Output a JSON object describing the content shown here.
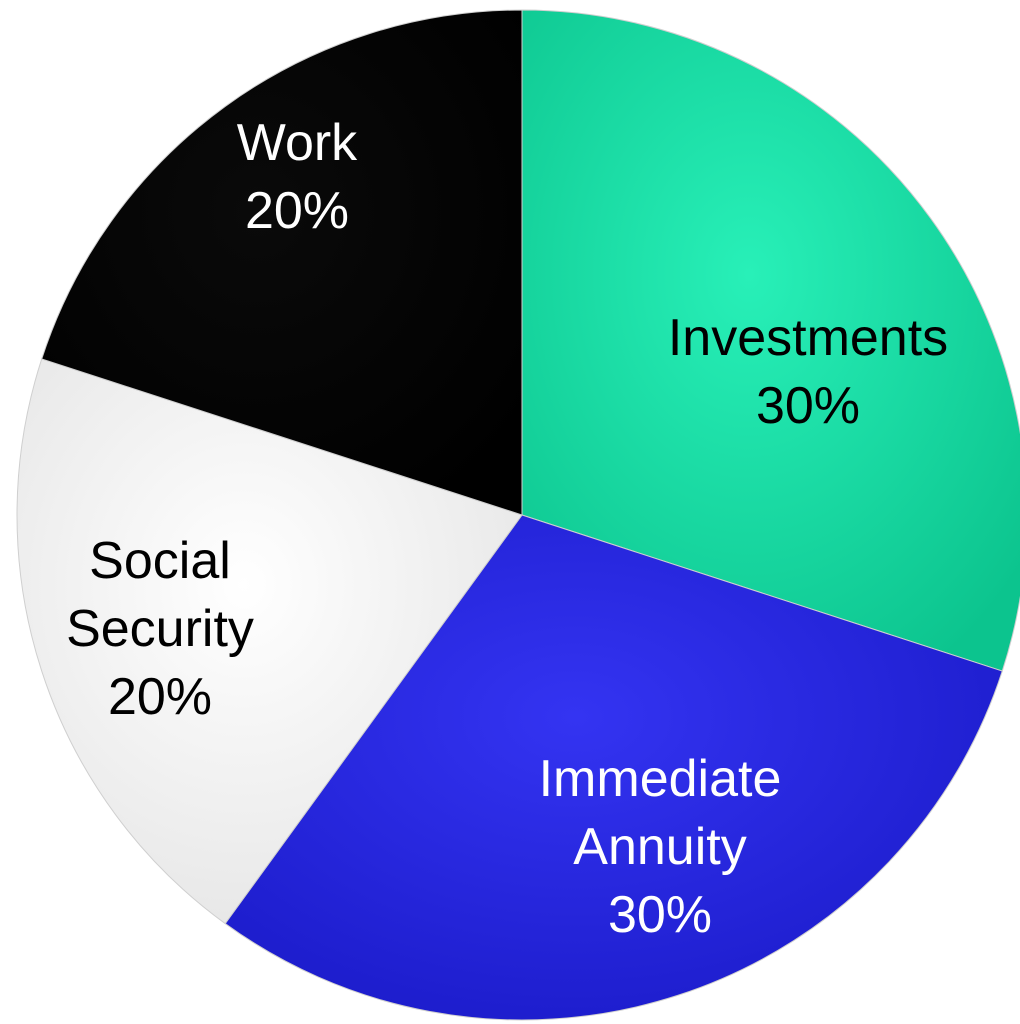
{
  "chart_data": {
    "type": "pie",
    "title": "",
    "slices": [
      {
        "label_lines": [
          "Investments",
          "30%"
        ],
        "value": 30,
        "color": "#14d8a0",
        "label_color": "#000000"
      },
      {
        "label_lines": [
          "Immediate",
          "Annuity",
          "30%"
        ],
        "value": 30,
        "color": "#2424e0",
        "label_color": "#ffffff"
      },
      {
        "label_lines": [
          "Social",
          "Security",
          "20%"
        ],
        "value": 20,
        "color": "#ffffff",
        "label_color": "#000000"
      },
      {
        "label_lines": [
          "Work",
          "20%"
        ],
        "value": 20,
        "color": "#000000",
        "label_color": "#ffffff"
      }
    ],
    "start_angle_deg": 0,
    "direction": "clockwise",
    "legend": "none"
  }
}
